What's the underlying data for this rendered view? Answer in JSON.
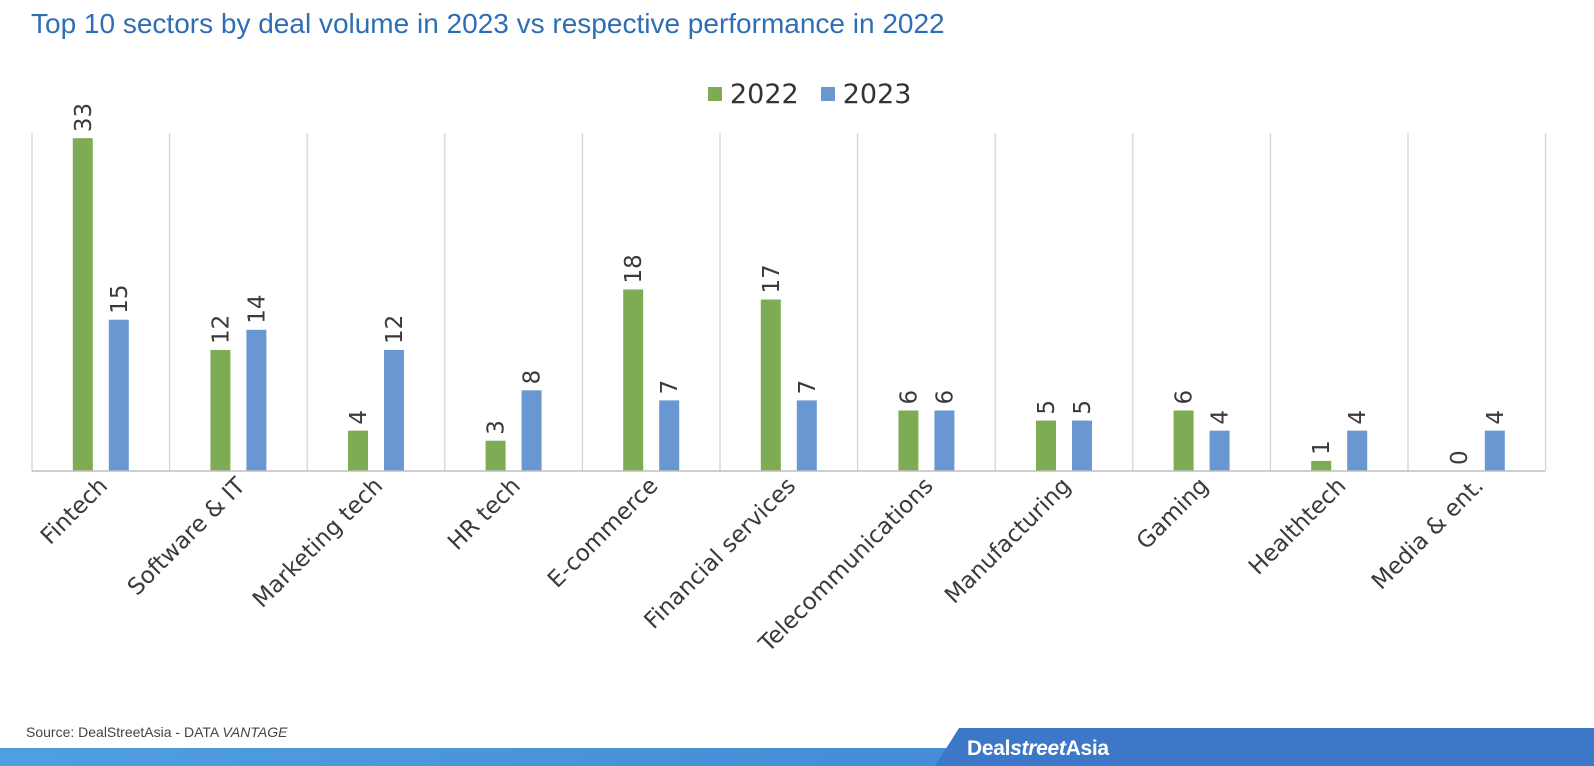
{
  "colors": {
    "series_2022": "#7dac55",
    "series_2023": "#6897d2",
    "title": "#2f6eb5",
    "brand_bar": "#3d78c8"
  },
  "chart_data": {
    "type": "bar",
    "title": "Top 10 sectors by deal volume in 2023 vs respective performance in 2022",
    "categories": [
      "Fintech",
      "Software & IT",
      "Marketing tech",
      "HR tech",
      "E-commerce",
      "Financial services",
      "Telecommunications",
      "Manufacturing",
      "Gaming",
      "Healthtech",
      "Media & ent."
    ],
    "series": [
      {
        "name": "2022",
        "values": [
          33,
          12,
          4,
          3,
          18,
          17,
          6,
          5,
          6,
          1,
          0
        ]
      },
      {
        "name": "2023",
        "values": [
          15,
          14,
          12,
          8,
          7,
          7,
          6,
          5,
          4,
          4,
          4
        ]
      }
    ],
    "ylim": [
      0,
      35
    ],
    "legend_position": "top-center",
    "grid": "vertical separators between categories"
  },
  "footer": {
    "source_prefix": "Source: DealStreetAsia - DATA ",
    "source_italic": "VANTAGE",
    "brand_regular_1": "Deal",
    "brand_italic": "street",
    "brand_regular_2": "Asia"
  }
}
